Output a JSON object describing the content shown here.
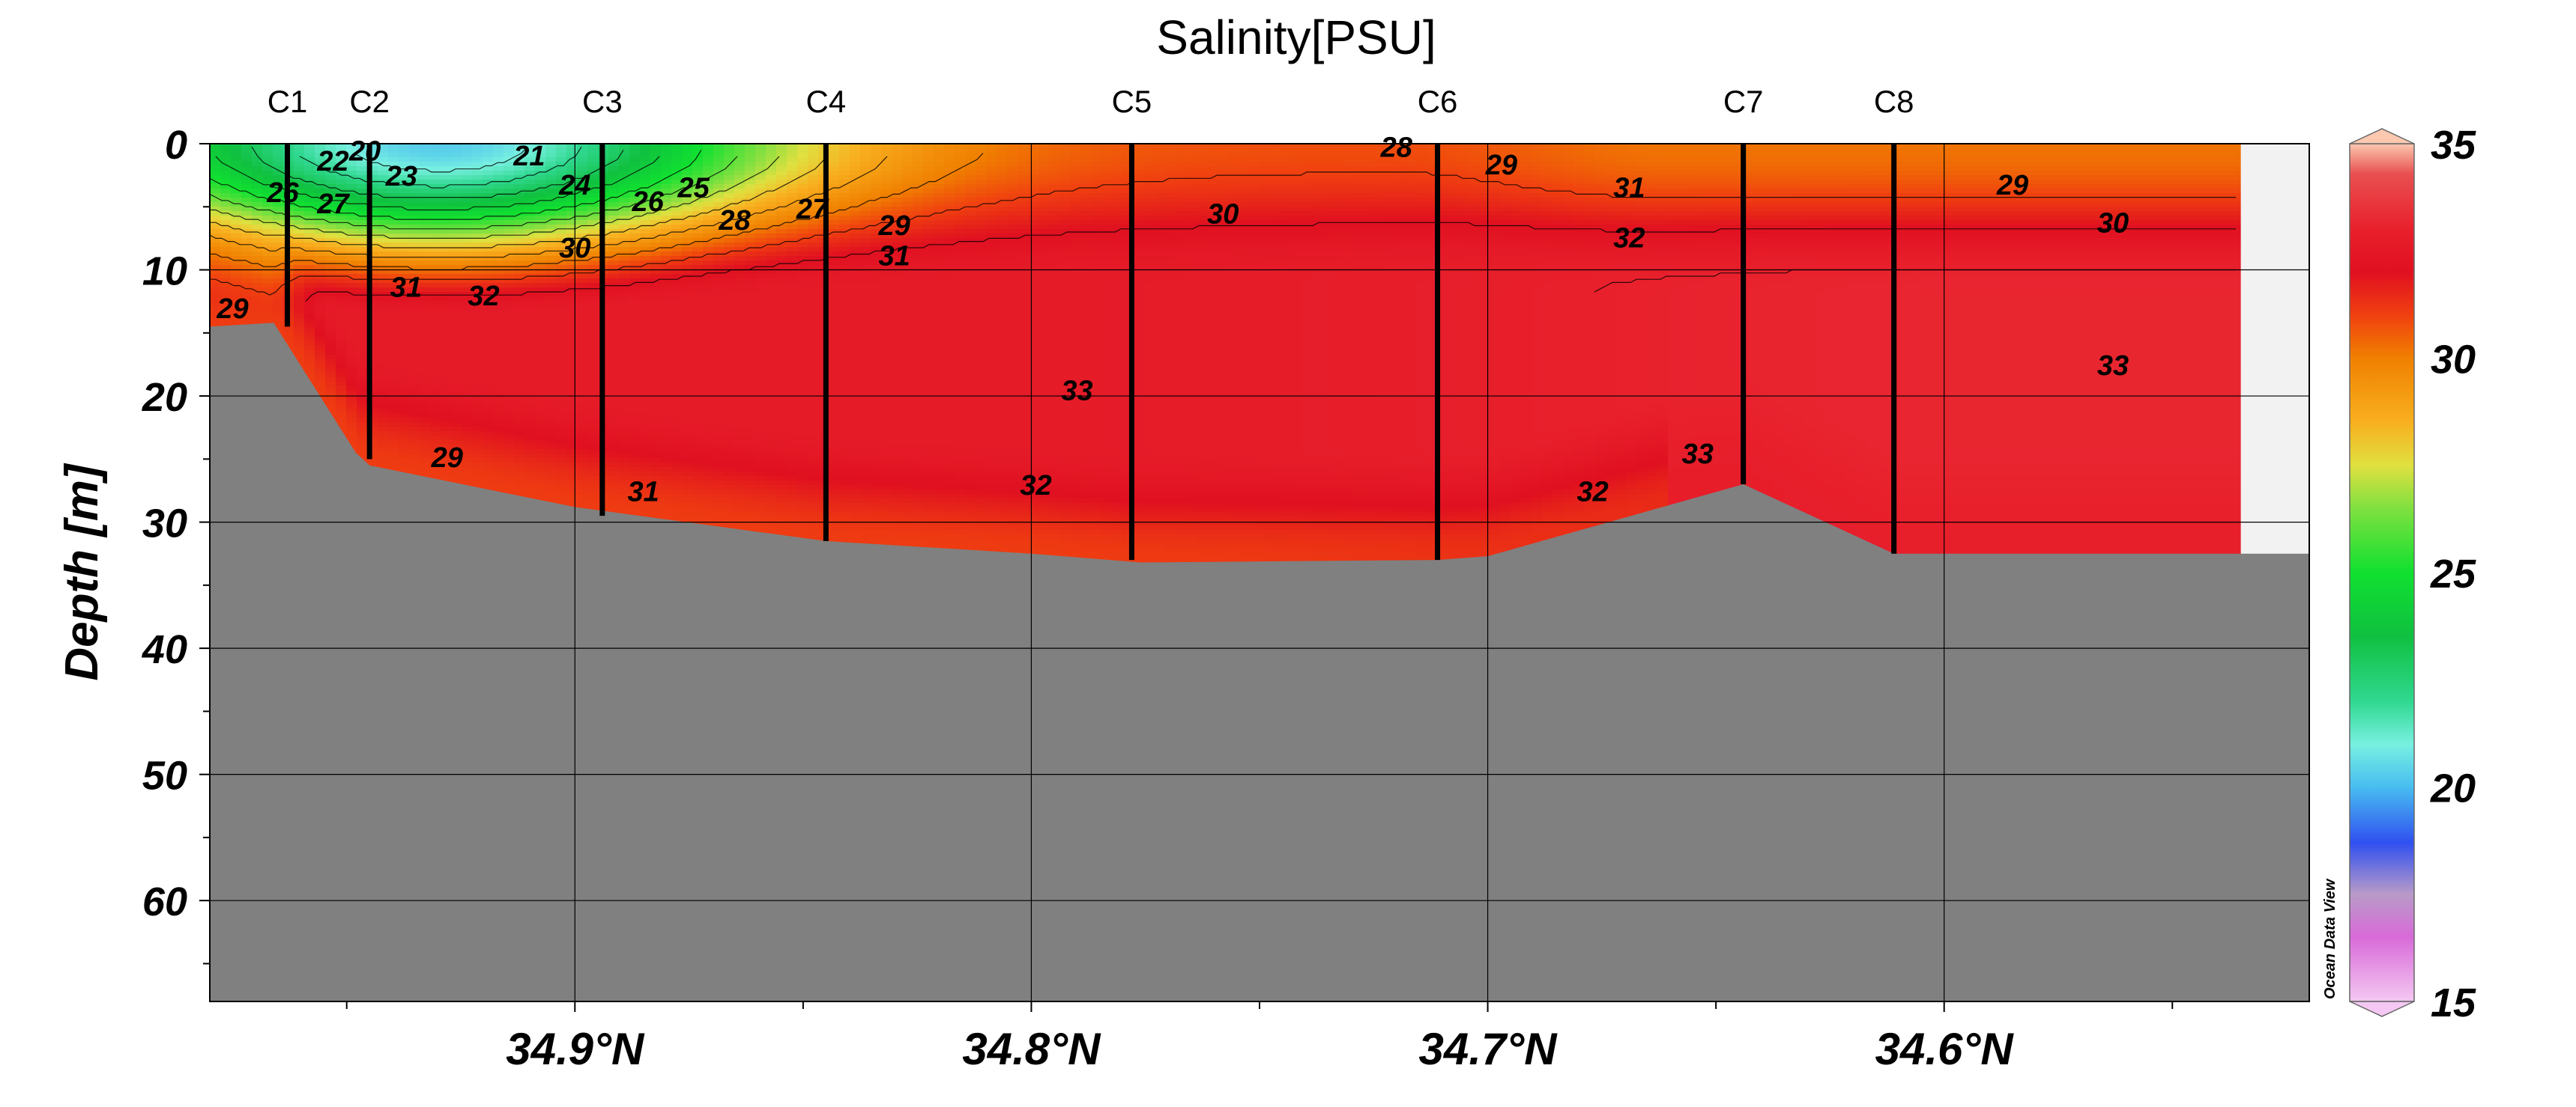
{
  "chart_data": {
    "type": "heatmap",
    "title": "Salinity[PSU]",
    "ylabel": "Depth [m]",
    "xlabel": "",
    "watermark": "Ocean Data View",
    "x_axis": {
      "ticks": [
        34.9,
        34.8,
        34.7,
        34.6
      ],
      "tick_labels": [
        "34.9°N",
        "34.8°N",
        "34.7°N",
        "34.6°N"
      ],
      "range": [
        34.98,
        34.52
      ],
      "direction": "decreasing to the right"
    },
    "y_axis": {
      "ticks": [
        0,
        10,
        20,
        30,
        40,
        50,
        60
      ],
      "tick_labels": [
        "0",
        "10",
        "20",
        "30",
        "40",
        "50",
        "60"
      ],
      "range": [
        0,
        68
      ],
      "inverted": true
    },
    "grid": true,
    "colorbar": {
      "ticks": [
        15,
        20,
        25,
        30,
        35
      ],
      "tick_labels": [
        "15",
        "20",
        "25",
        "30",
        "35"
      ],
      "range": [
        15,
        35
      ],
      "placement": "right",
      "stops": [
        {
          "v": 15,
          "c": "#f4c8f2"
        },
        {
          "v": 16.5,
          "c": "#d86ad8"
        },
        {
          "v": 17.5,
          "c": "#b89ac8"
        },
        {
          "v": 18.7,
          "c": "#3050f0"
        },
        {
          "v": 20,
          "c": "#48bdf0"
        },
        {
          "v": 21,
          "c": "#78f0e0"
        },
        {
          "v": 22,
          "c": "#30d890"
        },
        {
          "v": 23.5,
          "c": "#10c040"
        },
        {
          "v": 25,
          "c": "#10e030"
        },
        {
          "v": 26.5,
          "c": "#80e040"
        },
        {
          "v": 27.5,
          "c": "#e0e040"
        },
        {
          "v": 28.5,
          "c": "#f8b020"
        },
        {
          "v": 30,
          "c": "#f08000"
        },
        {
          "v": 31,
          "c": "#f04010"
        },
        {
          "v": 32,
          "c": "#e01020"
        },
        {
          "v": 33,
          "c": "#e8202c"
        },
        {
          "v": 34.3,
          "c": "#e85050"
        },
        {
          "v": 35,
          "c": "#fcc8b0"
        }
      ]
    },
    "stations": [
      {
        "name": "C1",
        "lat": 34.963,
        "bottom_depth": 14.5
      },
      {
        "name": "C2",
        "lat": 34.945,
        "bottom_depth": 25
      },
      {
        "name": "C3",
        "lat": 34.894,
        "bottom_depth": 29.5
      },
      {
        "name": "C4",
        "lat": 34.845,
        "bottom_depth": 31.5
      },
      {
        "name": "C5",
        "lat": 34.778,
        "bottom_depth": 33
      },
      {
        "name": "C6",
        "lat": 34.711,
        "bottom_depth": 33
      },
      {
        "name": "C7",
        "lat": 34.644,
        "bottom_depth": 27
      },
      {
        "name": "C8",
        "lat": 34.611,
        "bottom_depth": 32.5
      }
    ],
    "bathymetry": [
      {
        "lat": 34.98,
        "depth": 14.5
      },
      {
        "lat": 34.966,
        "depth": 14.2
      },
      {
        "lat": 34.948,
        "depth": 24.5
      },
      {
        "lat": 34.945,
        "depth": 25.5
      },
      {
        "lat": 34.9,
        "depth": 28.8
      },
      {
        "lat": 34.845,
        "depth": 31.5
      },
      {
        "lat": 34.8,
        "depth": 32.5
      },
      {
        "lat": 34.776,
        "depth": 33.2
      },
      {
        "lat": 34.711,
        "depth": 33
      },
      {
        "lat": 34.7,
        "depth": 32.7
      },
      {
        "lat": 34.644,
        "depth": 27
      },
      {
        "lat": 34.611,
        "depth": 32.5
      },
      {
        "lat": 34.52,
        "depth": 32.5
      }
    ],
    "data_extent_lat": 34.535,
    "contour_labels": [
      {
        "text": "20",
        "lat": 34.946,
        "depth": 0.5
      },
      {
        "text": "21",
        "lat": 34.91,
        "depth": 0.9
      },
      {
        "text": "22",
        "lat": 34.953,
        "depth": 1.3
      },
      {
        "text": "23",
        "lat": 34.938,
        "depth": 2.5
      },
      {
        "text": "24",
        "lat": 34.9,
        "depth": 3.2
      },
      {
        "text": "25",
        "lat": 34.874,
        "depth": 3.4
      },
      {
        "text": "26",
        "lat": 34.964,
        "depth": 3.8
      },
      {
        "text": "26",
        "lat": 34.884,
        "depth": 4.5
      },
      {
        "text": "27",
        "lat": 34.953,
        "depth": 4.7
      },
      {
        "text": "27",
        "lat": 34.848,
        "depth": 5.1
      },
      {
        "text": "28",
        "lat": 34.865,
        "depth": 6.0
      },
      {
        "text": "28",
        "lat": 34.72,
        "depth": 0.2
      },
      {
        "text": "29",
        "lat": 34.83,
        "depth": 6.4
      },
      {
        "text": "29",
        "lat": 34.697,
        "depth": 1.6
      },
      {
        "text": "29",
        "lat": 34.585,
        "depth": 3.2
      },
      {
        "text": "29",
        "lat": 34.975,
        "depth": 13.0
      },
      {
        "text": "29",
        "lat": 34.928,
        "depth": 24.8
      },
      {
        "text": "30",
        "lat": 34.9,
        "depth": 8.2
      },
      {
        "text": "30",
        "lat": 34.758,
        "depth": 5.5
      },
      {
        "text": "30",
        "lat": 34.563,
        "depth": 6.2
      },
      {
        "text": "31",
        "lat": 34.83,
        "depth": 8.8
      },
      {
        "text": "31",
        "lat": 34.669,
        "depth": 3.4
      },
      {
        "text": "31",
        "lat": 34.937,
        "depth": 11.3
      },
      {
        "text": "31",
        "lat": 34.885,
        "depth": 27.5
      },
      {
        "text": "32",
        "lat": 34.669,
        "depth": 7.4
      },
      {
        "text": "32",
        "lat": 34.92,
        "depth": 12.0
      },
      {
        "text": "32",
        "lat": 34.799,
        "depth": 27.0
      },
      {
        "text": "32",
        "lat": 34.677,
        "depth": 27.5
      },
      {
        "text": "33",
        "lat": 34.563,
        "depth": 17.5
      },
      {
        "text": "33",
        "lat": 34.79,
        "depth": 19.5
      },
      {
        "text": "33",
        "lat": 34.654,
        "depth": 24.5
      }
    ]
  }
}
